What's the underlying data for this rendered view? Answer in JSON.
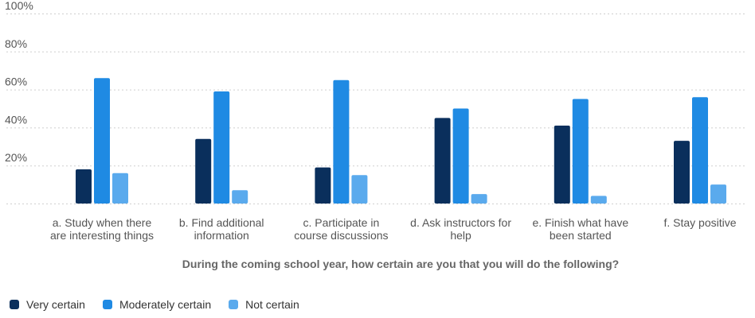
{
  "chart_data": {
    "type": "bar",
    "xlabel": "During the coming school year, how certain are you that you will do the following?",
    "ylabel": "",
    "ylim": [
      0,
      100
    ],
    "yticks": [
      "20%",
      "40%",
      "60%",
      "80%",
      "100%"
    ],
    "grid": true,
    "legend_position": "bottom-left",
    "categories": [
      [
        "a. Study when there",
        "are interesting things"
      ],
      [
        "b. Find additional",
        "information"
      ],
      [
        "c. Participate in",
        "course discussions"
      ],
      [
        "d. Ask instructors for",
        "help"
      ],
      [
        "e. Finish what have",
        "been started"
      ],
      [
        "f. Stay positive"
      ]
    ],
    "series": [
      {
        "name": "Very certain",
        "color": "#0a2f5c",
        "values": [
          18,
          34,
          19,
          45,
          41,
          33
        ]
      },
      {
        "name": "Moderately certain",
        "color": "#1f8ae3",
        "values": [
          66,
          59,
          65,
          50,
          55,
          56
        ]
      },
      {
        "name": "Not certain",
        "color": "#5aaaed",
        "values": [
          16,
          7,
          15,
          5,
          4,
          10
        ]
      }
    ]
  }
}
